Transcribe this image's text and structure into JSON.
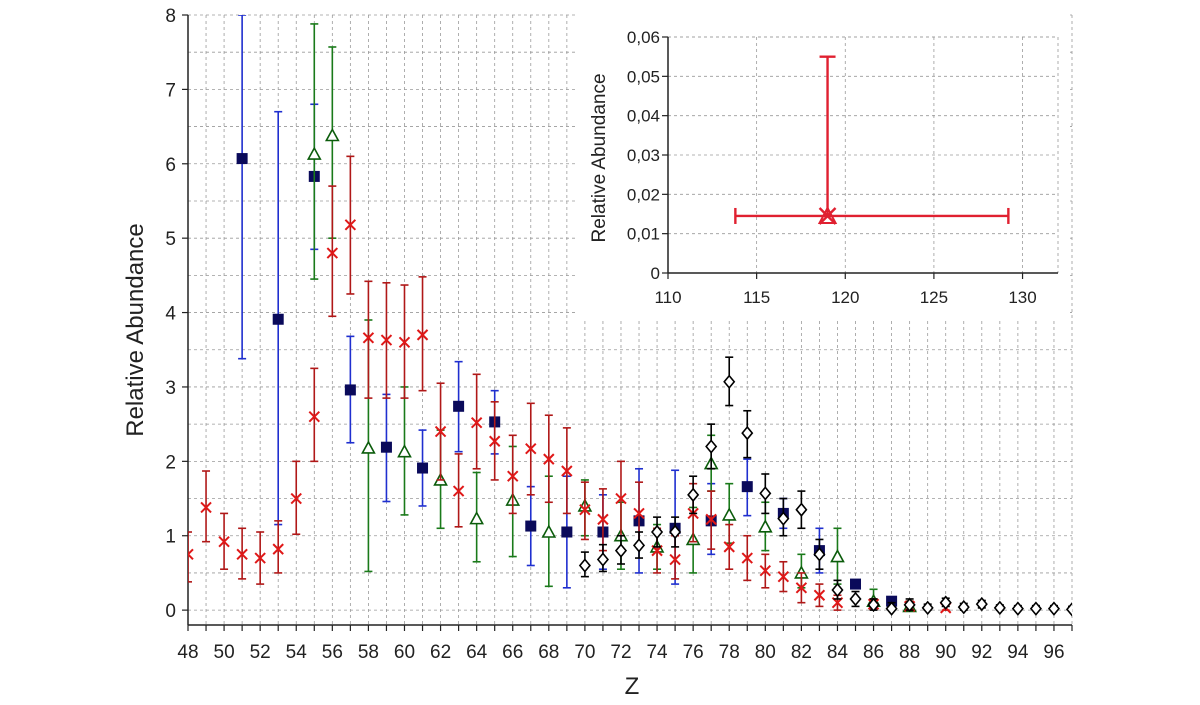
{
  "chart_data": [
    {
      "type": "scatter",
      "xlabel": "Z",
      "ylabel": "Relative Abundance",
      "xlim": [
        48,
        97
      ],
      "ylim": [
        -0.2,
        8
      ],
      "x_ticks": [
        "48",
        "50",
        "52",
        "54",
        "56",
        "58",
        "60",
        "62",
        "64",
        "66",
        "68",
        "70",
        "72",
        "74",
        "76",
        "78",
        "80",
        "82",
        "84",
        "86",
        "88",
        "90",
        "92",
        "94",
        "96"
      ],
      "x_tick_values": [
        48,
        50,
        52,
        54,
        56,
        58,
        60,
        62,
        64,
        66,
        68,
        70,
        72,
        74,
        76,
        78,
        80,
        82,
        84,
        86,
        88,
        90,
        92,
        94,
        96
      ],
      "y_ticks": [
        "0",
        "1",
        "2",
        "3",
        "4",
        "5",
        "6",
        "7",
        "8"
      ],
      "y_tick_values": [
        0,
        1,
        2,
        3,
        4,
        5,
        6,
        7,
        8
      ],
      "grid": true,
      "series": [
        {
          "marker": "square",
          "color": "#0a0a5a",
          "error_color": "#1f2fcf",
          "points": [
            [
              51,
              6.07,
              3.38,
              8.0
            ],
            [
              53,
              3.91,
              1.15,
              6.7
            ],
            [
              55,
              5.83,
              4.85,
              6.8
            ],
            [
              57,
              2.96,
              2.25,
              3.68
            ],
            [
              59,
              2.19,
              1.46,
              2.9
            ],
            [
              61,
              1.91,
              1.4,
              2.42
            ],
            [
              63,
              2.74,
              2.13,
              3.34
            ],
            [
              65,
              2.53,
              2.1,
              2.95
            ],
            [
              67,
              1.13,
              0.6,
              1.66
            ],
            [
              69,
              1.05,
              0.3,
              1.8
            ],
            [
              71,
              1.05,
              0.55,
              1.55
            ],
            [
              73,
              1.2,
              0.5,
              1.9
            ],
            [
              75,
              1.1,
              0.35,
              1.88
            ],
            [
              77,
              1.2,
              0.75,
              1.7
            ],
            [
              79,
              1.66,
              1.27,
              2.03
            ],
            [
              81,
              1.3,
              1.1,
              1.5
            ],
            [
              83,
              0.8,
              0.5,
              1.1
            ],
            [
              85,
              0.35,
              0.3,
              0.4
            ],
            [
              87,
              0.12,
              0.08,
              0.16
            ]
          ]
        },
        {
          "marker": "triangle",
          "color": "#0b5c0b",
          "error_color": "#1a7a1a",
          "points": [
            [
              55,
              6.13,
              4.45,
              7.88
            ],
            [
              56,
              6.38,
              5.0,
              7.57
            ],
            [
              58,
              2.18,
              0.52,
              3.9
            ],
            [
              60,
              2.13,
              1.28,
              3.0
            ],
            [
              62,
              1.75,
              1.1,
              2.42
            ],
            [
              64,
              1.23,
              0.65,
              1.85
            ],
            [
              66,
              1.48,
              0.72,
              2.2
            ],
            [
              68,
              1.05,
              0.32,
              1.8
            ],
            [
              70,
              1.4,
              1.0,
              1.75
            ],
            [
              72,
              1.0,
              0.55,
              1.45
            ],
            [
              74,
              0.85,
              0.55,
              1.15
            ],
            [
              76,
              0.95,
              0.5,
              1.38
            ],
            [
              77,
              1.97,
              1.6,
              2.35
            ],
            [
              78,
              1.28,
              0.9,
              1.7
            ],
            [
              80,
              1.12,
              0.8,
              1.45
            ],
            [
              82,
              0.5,
              0.3,
              0.75
            ],
            [
              84,
              0.72,
              0.35,
              1.1
            ],
            [
              86,
              0.12,
              0.05,
              0.28
            ],
            [
              88,
              0.05,
              0.0,
              0.12
            ]
          ]
        },
        {
          "marker": "cross",
          "color": "#e01818",
          "error_color": "#b01818",
          "points": [
            [
              48,
              0.75,
              0.38,
              1.05
            ],
            [
              49,
              1.38,
              0.92,
              1.87
            ],
            [
              50,
              0.92,
              0.55,
              1.3
            ],
            [
              51,
              0.75,
              0.42,
              1.1
            ],
            [
              52,
              0.7,
              0.35,
              1.05
            ],
            [
              53,
              0.82,
              0.5,
              1.2
            ],
            [
              54,
              1.5,
              1.02,
              2.0
            ],
            [
              55,
              2.6,
              2.0,
              3.25
            ],
            [
              56,
              4.8,
              3.95,
              5.7
            ],
            [
              57,
              5.18,
              4.25,
              6.1
            ],
            [
              58,
              3.66,
              2.85,
              4.42
            ],
            [
              59,
              3.63,
              2.85,
              4.4
            ],
            [
              60,
              3.6,
              2.85,
              4.37
            ],
            [
              61,
              3.7,
              2.95,
              4.48
            ],
            [
              62,
              2.4,
              1.75,
              3.05
            ],
            [
              63,
              1.6,
              1.12,
              2.1
            ],
            [
              64,
              2.52,
              1.9,
              3.17
            ],
            [
              65,
              2.27,
              1.75,
              2.8
            ],
            [
              66,
              1.8,
              1.3,
              2.35
            ],
            [
              67,
              2.17,
              1.55,
              2.78
            ],
            [
              68,
              2.03,
              1.45,
              2.62
            ],
            [
              69,
              1.87,
              1.3,
              2.45
            ],
            [
              70,
              1.35,
              0.95,
              1.72
            ],
            [
              71,
              1.22,
              0.8,
              1.63
            ],
            [
              72,
              1.5,
              1.0,
              2.0
            ],
            [
              73,
              1.3,
              0.88,
              1.72
            ],
            [
              74,
              0.8,
              0.5,
              1.1
            ],
            [
              75,
              0.68,
              0.42,
              1.0
            ],
            [
              76,
              1.3,
              0.92,
              1.7
            ],
            [
              77,
              1.22,
              0.82,
              1.6
            ],
            [
              78,
              0.85,
              0.55,
              1.15
            ],
            [
              79,
              0.7,
              0.4,
              1.0
            ],
            [
              80,
              0.53,
              0.3,
              0.75
            ],
            [
              81,
              0.45,
              0.25,
              0.65
            ],
            [
              82,
              0.3,
              0.1,
              0.5
            ],
            [
              83,
              0.2,
              0.05,
              0.35
            ],
            [
              84,
              0.1,
              0.0,
              0.2
            ],
            [
              86,
              0.08,
              0.02,
              0.15
            ],
            [
              88,
              0.05,
              0.0,
              0.12
            ],
            [
              90,
              0.03,
              0.0,
              0.08
            ]
          ]
        },
        {
          "marker": "diamond",
          "color": "#000000",
          "error_color": "#000000",
          "points": [
            [
              70,
              0.6,
              0.45,
              0.78
            ],
            [
              71,
              0.68,
              0.52,
              0.88
            ],
            [
              72,
              0.8,
              0.62,
              1.0
            ],
            [
              73,
              0.87,
              0.7,
              1.05
            ],
            [
              74,
              1.05,
              0.85,
              1.25
            ],
            [
              75,
              1.05,
              0.85,
              1.25
            ],
            [
              76,
              1.55,
              1.3,
              1.8
            ],
            [
              77,
              2.2,
              1.9,
              2.5
            ],
            [
              78,
              3.07,
              2.75,
              3.4
            ],
            [
              79,
              2.38,
              2.05,
              2.68
            ],
            [
              80,
              1.57,
              1.3,
              1.83
            ],
            [
              81,
              1.23,
              1.0,
              1.5
            ],
            [
              82,
              1.35,
              1.1,
              1.6
            ],
            [
              83,
              0.75,
              0.55,
              0.95
            ],
            [
              84,
              0.27,
              0.15,
              0.4
            ],
            [
              85,
              0.15,
              0.05,
              0.25
            ],
            [
              86,
              0.07,
              0.0,
              0.15
            ],
            [
              87,
              0.02,
              0.0,
              0.1
            ],
            [
              88,
              0.07,
              0.0,
              0.15
            ],
            [
              89,
              0.03,
              0.0,
              0.08
            ],
            [
              90,
              0.1,
              0.05,
              0.16
            ],
            [
              91,
              0.04,
              0.0,
              0.09
            ],
            [
              92,
              0.08,
              0.03,
              0.13
            ],
            [
              93,
              0.03,
              0.0,
              0.07
            ],
            [
              94,
              0.02,
              0.0,
              0.06
            ],
            [
              95,
              0.02,
              0.0,
              0.06
            ],
            [
              96,
              0.02,
              0.0,
              0.06
            ],
            [
              97,
              0.01,
              0.0,
              0.05
            ]
          ]
        }
      ]
    },
    {
      "type": "scatter",
      "xlabel": "",
      "ylabel": "Relative Abundance",
      "xlim": [
        110,
        132
      ],
      "ylim": [
        0,
        0.06
      ],
      "x_ticks": [
        "110",
        "115",
        "120",
        "125",
        "130"
      ],
      "x_tick_values": [
        110,
        115,
        120,
        125,
        130
      ],
      "y_ticks": [
        "0",
        "0,01",
        "0,02",
        "0,03",
        "0,04",
        "0,05",
        "0,06"
      ],
      "y_tick_values": [
        0,
        0.01,
        0.02,
        0.03,
        0.04,
        0.05,
        0.06
      ],
      "grid": true,
      "color": "#e02030",
      "points": [
        {
          "x": 119,
          "y": 0.0145,
          "xerr": [
            113.8,
            129.2
          ],
          "yerr": [
            0.0145,
            0.055
          ]
        }
      ]
    }
  ]
}
